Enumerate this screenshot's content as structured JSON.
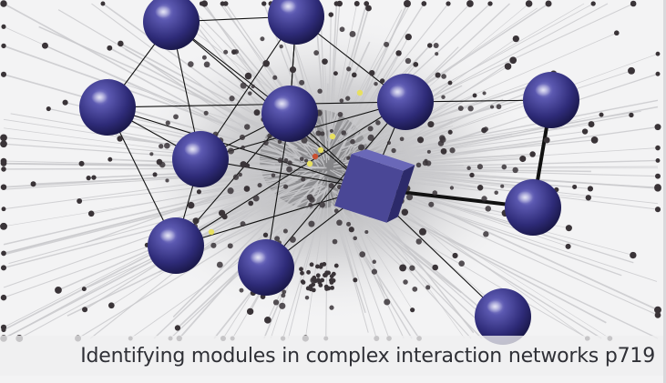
{
  "caption": {
    "text": "Identifying modules in complex interaction networks p719"
  },
  "colors": {
    "background": "#f3f3f4",
    "spoke_line": "#c8c8cb",
    "small_node": "#3a3438",
    "module_sphere": "#3d3a8a",
    "module_edge": "#111111",
    "hub_cube": "#4a4796",
    "highlight_yellow": "#e8e060",
    "highlight_red": "#c85030"
  },
  "icons": {
    "module_node": "sphere-icon",
    "hub": "cube-icon"
  }
}
